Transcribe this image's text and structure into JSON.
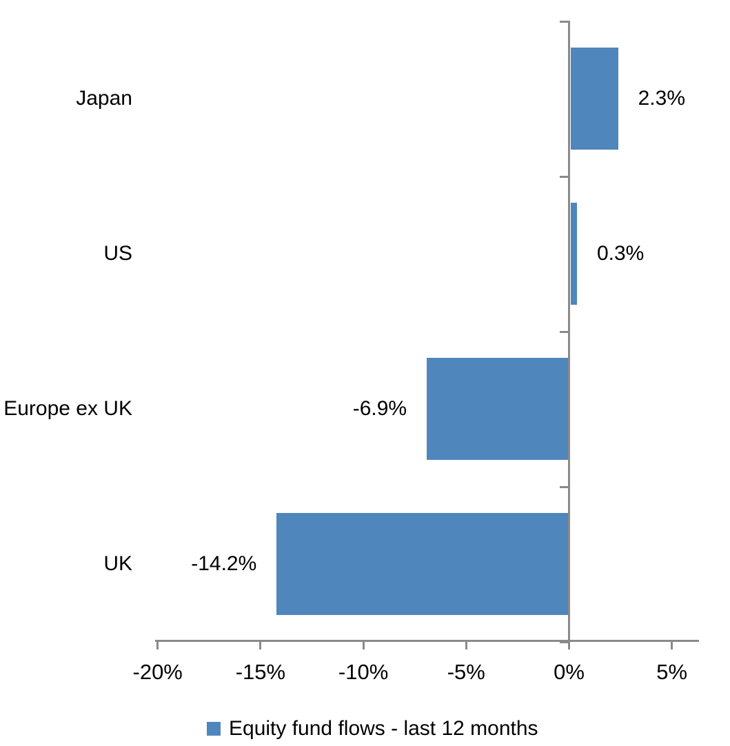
{
  "chart_data": {
    "type": "bar",
    "orientation": "horizontal",
    "title": "",
    "categories": [
      "Japan",
      "US",
      "Europe ex UK",
      "UK"
    ],
    "values": [
      2.3,
      0.3,
      -6.9,
      -14.2
    ],
    "data_labels": [
      "2.3%",
      "0.3%",
      "-6.9%",
      "-14.2%"
    ],
    "series_name": "Equity fund flows - last 12 months",
    "x_axis": {
      "ticks": [
        {
          "value": -20,
          "label": "-20%"
        },
        {
          "value": -15,
          "label": "-15%"
        },
        {
          "value": -10,
          "label": "-10%"
        },
        {
          "value": -5,
          "label": "-5%"
        },
        {
          "value": 0,
          "label": "0%"
        },
        {
          "value": 5,
          "label": "5%"
        }
      ],
      "range": [
        -20.1,
        6.3
      ]
    },
    "grid": false,
    "legend_position": "bottom",
    "data_label_position": "outside-end",
    "colors": {
      "bar": "#4F86BC",
      "axis": "#8A8A8A",
      "text": "#000000",
      "background": "#FFFFFF"
    }
  }
}
